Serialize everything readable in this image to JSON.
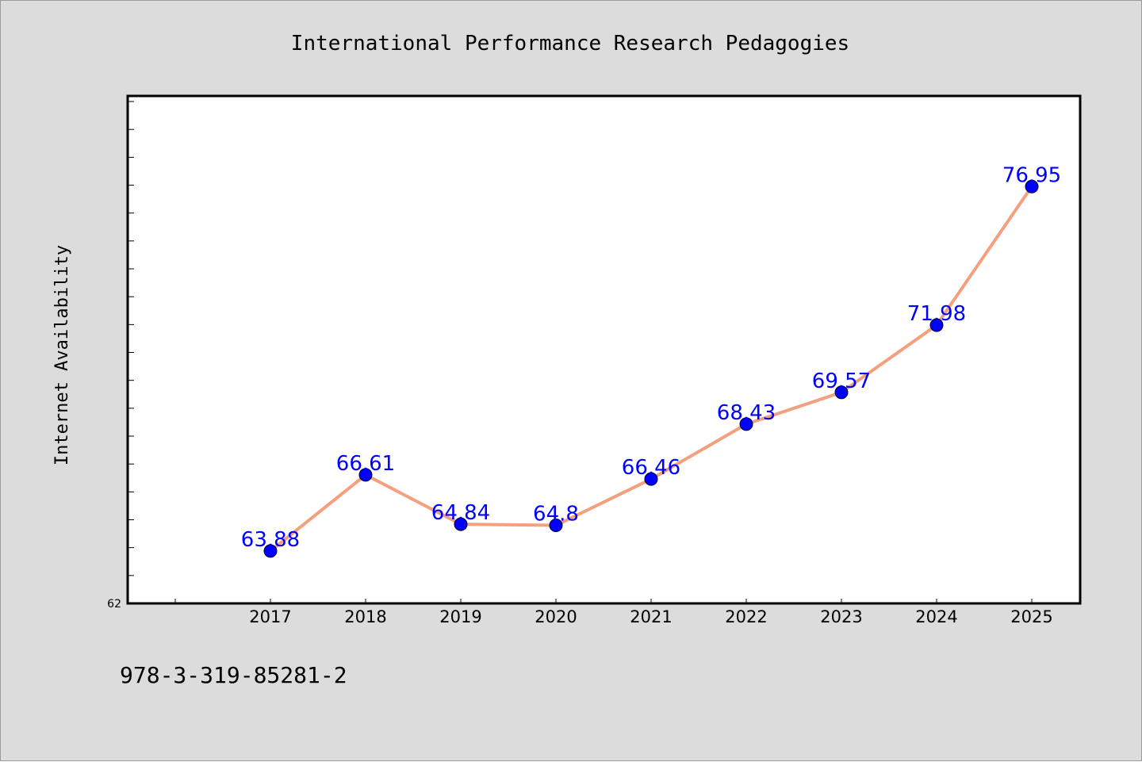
{
  "chart_data": {
    "type": "line",
    "title": "International Performance Research Pedagogies",
    "xlabel": "",
    "ylabel": "Internet Availability",
    "categories": [
      "2017",
      "2018",
      "2019",
      "2020",
      "2021",
      "2022",
      "2023",
      "2024",
      "2025"
    ],
    "series": [
      {
        "values": [
          63.88,
          66.61,
          64.84,
          64.8,
          66.46,
          68.43,
          69.57,
          71.98,
          76.95
        ],
        "data_labels": [
          "63.88",
          "66.61",
          "64.84",
          "64.8",
          "66.46",
          "68.43",
          "69.57",
          "71.98",
          "76.95"
        ]
      }
    ],
    "ylim": [
      62,
      80.2
    ],
    "y_tick_labels": [
      "62"
    ],
    "line_color": "#f4a07e",
    "marker_color": "#0000ff",
    "label_color": "#0000ff",
    "grid": false,
    "legend": "none"
  },
  "footer": {
    "code": "978-3-319-85281-2"
  }
}
